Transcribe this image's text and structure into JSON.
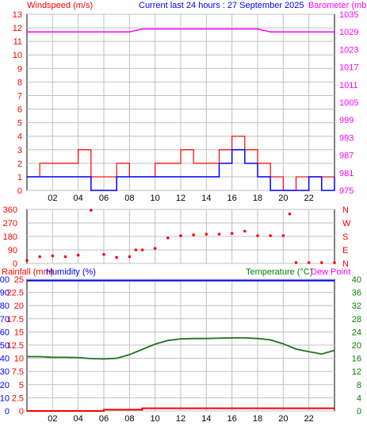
{
  "header": {
    "left_title": "Windspeed (m/s)",
    "center_title": "Current last 24 hours : 27 September 2025",
    "right_title": "Barometer (mb)"
  },
  "colors": {
    "wind": "#ff0000",
    "wind_avg": "#0000ff",
    "baro": "#ff00ff",
    "dir": "#ff0000",
    "rain": "#ff0000",
    "humidity": "#0000ff",
    "temperature": "#008000",
    "dewpoint": "#ff00ff",
    "rain_label": "#ff0000",
    "humidity_label": "#0000ff",
    "temp_label": "#008000",
    "dew_label": "#ff00ff",
    "grid": "#c0c0c0",
    "axis": "#000000"
  },
  "chart_data": [
    {
      "type": "line",
      "name": "wind-baro",
      "x_ticks": [
        "02",
        "04",
        "06",
        "08",
        "10",
        "12",
        "14",
        "16",
        "18",
        "20",
        "22"
      ],
      "ylim": [
        0,
        13
      ],
      "y_ticks": [
        "0",
        "1",
        "2",
        "3",
        "4",
        "5",
        "6",
        "7",
        "8",
        "9",
        "10",
        "11",
        "12",
        "13"
      ],
      "y2lim": [
        975,
        1035
      ],
      "y2_ticks": [
        "975",
        "981",
        "987",
        "993",
        "999",
        "1005",
        "1011",
        "1017",
        "1023",
        "1029",
        "1035"
      ],
      "x": [
        0,
        1,
        2,
        3,
        4,
        5,
        6,
        7,
        8,
        9,
        10,
        11,
        12,
        13,
        14,
        15,
        16,
        17,
        18,
        19,
        20,
        21,
        22,
        23,
        24
      ],
      "series": [
        {
          "name": "Windspeed (m/s)",
          "axis": "y",
          "values": [
            1,
            2,
            2,
            2,
            3,
            1,
            1,
            2,
            1,
            1,
            2,
            2,
            3,
            2,
            2,
            3,
            4,
            3,
            2,
            1,
            0,
            1,
            1,
            1,
            1
          ]
        },
        {
          "name": "Windspeed (m/s)",
          "axis": "y",
          "values": [
            1,
            1,
            1,
            1,
            1,
            0,
            0,
            1,
            1,
            1,
            1,
            1,
            1,
            1,
            1,
            2,
            3,
            2,
            1,
            0,
            0,
            0,
            1,
            0,
            1
          ]
        },
        {
          "name": "Barometer (mb)",
          "axis": "y2",
          "values": [
            1029,
            1029,
            1029,
            1029,
            1029,
            1029,
            1029,
            1029,
            1029,
            1030,
            1030,
            1030,
            1030,
            1030,
            1030,
            1030,
            1030,
            1030,
            1030,
            1029,
            1029,
            1029,
            1029,
            1029,
            1029
          ]
        }
      ]
    },
    {
      "type": "scatter",
      "name": "direction",
      "ylim": [
        0,
        360
      ],
      "y_ticks": [
        "0",
        "90",
        "180",
        "270",
        "360"
      ],
      "y2_ticks": [
        "N",
        "E",
        "S",
        "W",
        "N"
      ],
      "points": [
        [
          0,
          20
        ],
        [
          1,
          45
        ],
        [
          2,
          50
        ],
        [
          3,
          45
        ],
        [
          4,
          55
        ],
        [
          5,
          355
        ],
        [
          6,
          60
        ],
        [
          7,
          40
        ],
        [
          8,
          45
        ],
        [
          8.5,
          90
        ],
        [
          9,
          90
        ],
        [
          10,
          100
        ],
        [
          11,
          170
        ],
        [
          12,
          185
        ],
        [
          13,
          190
        ],
        [
          14,
          195
        ],
        [
          15,
          195
        ],
        [
          16,
          200
        ],
        [
          17,
          215
        ],
        [
          18,
          185
        ],
        [
          19,
          185
        ],
        [
          20,
          185
        ],
        [
          20.5,
          330
        ],
        [
          21,
          5
        ],
        [
          22,
          5
        ],
        [
          23,
          5
        ],
        [
          24,
          5
        ]
      ]
    },
    {
      "type": "line",
      "name": "rain-hum-temp",
      "ylim": [
        0,
        100
      ],
      "y_ticks": [
        "0",
        "10",
        "20",
        "30",
        "40",
        "50",
        "60",
        "70",
        "80",
        "90",
        "100"
      ],
      "y_ticks_rain": [
        "0",
        "2.5",
        "5",
        "7.5",
        "10",
        "12.5",
        "15",
        "17.5",
        "20",
        "22.5",
        "25"
      ],
      "y2lim": [
        0,
        40
      ],
      "y2_ticks": [
        "0",
        "4",
        "8",
        "12",
        "16",
        "20",
        "24",
        "28",
        "32",
        "36",
        "40"
      ],
      "x": [
        0,
        1,
        2,
        3,
        4,
        5,
        6,
        7,
        8,
        9,
        10,
        11,
        12,
        13,
        14,
        15,
        16,
        17,
        18,
        19,
        20,
        21,
        22,
        23,
        24
      ],
      "series": [
        {
          "name": "Rainfall (mm)",
          "axis": "y",
          "values": [
            0,
            0,
            0,
            0,
            0,
            0,
            1,
            1,
            1,
            2,
            2,
            2,
            2,
            2,
            2,
            2,
            2,
            2,
            2,
            2,
            2,
            2,
            2,
            2,
            2
          ]
        },
        {
          "name": "Humidity (%)",
          "axis": "y",
          "values": [
            99,
            99,
            99,
            99,
            99,
            99,
            99,
            99,
            99,
            99,
            99,
            99,
            99,
            99,
            99,
            99,
            99,
            99,
            99,
            99,
            99,
            99,
            99,
            99,
            99
          ]
        },
        {
          "name": "Temperature (°C)",
          "axis": "y2",
          "values": [
            16.5,
            16.5,
            16.3,
            16.3,
            16.2,
            15.9,
            15.8,
            16.0,
            17.1,
            18.7,
            20.3,
            21.4,
            21.9,
            22.0,
            22.0,
            22.1,
            22.2,
            22.2,
            22.0,
            21.6,
            20.4,
            18.8,
            18.0,
            17.3,
            18.4
          ]
        },
        {
          "name": "Dew Point",
          "axis": "y2",
          "values": [
            16.5,
            16.5,
            16.3,
            16.3,
            16.2,
            15.9,
            15.8,
            16.0,
            17.1,
            18.7,
            20.3,
            21.4,
            21.9,
            22.0,
            22.0,
            22.1,
            22.2,
            22.2,
            22.0,
            21.6,
            20.4,
            18.8,
            18.0,
            17.3,
            18.4
          ]
        }
      ]
    }
  ],
  "panel3_labels": {
    "rain": "Rainfall (mm)",
    "humidity": "Humidity (%)",
    "temperature": "Temperature (°C)",
    "dewpoint": "Dew Point"
  }
}
